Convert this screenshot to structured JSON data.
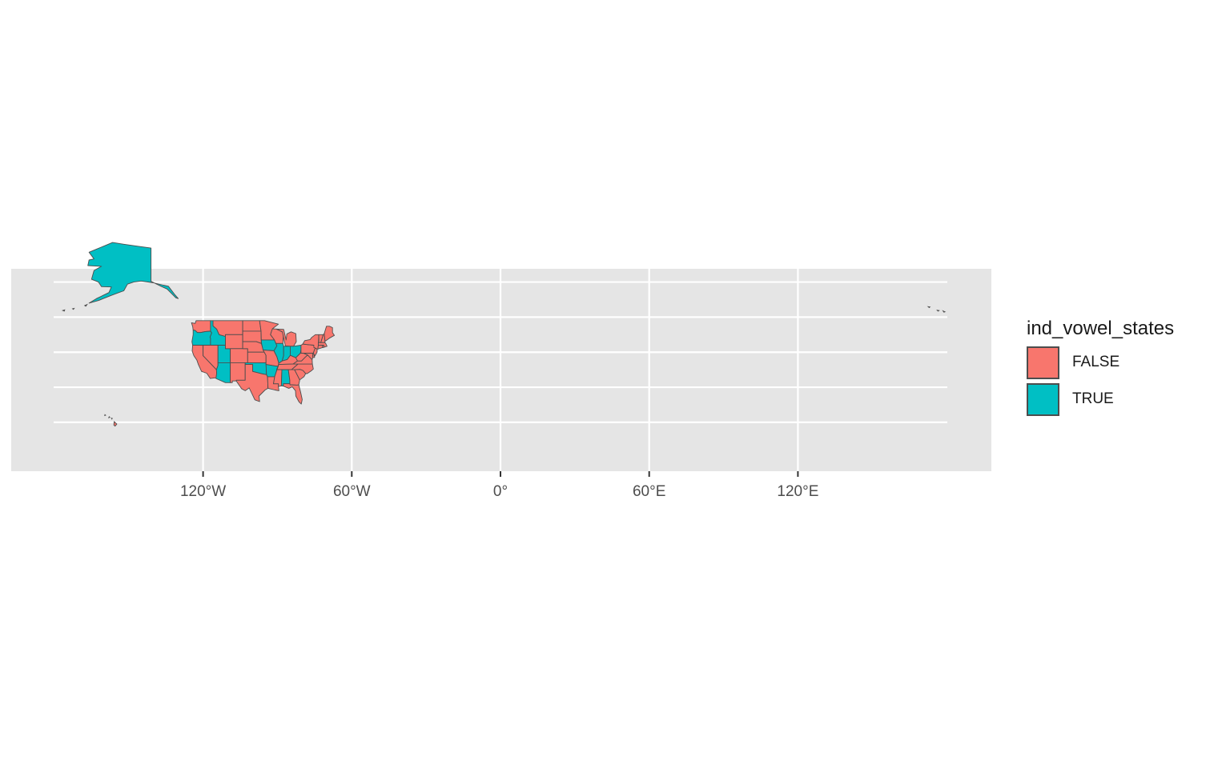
{
  "chart_data": {
    "type": "map",
    "projection": "longitude-latitude",
    "x_ticks": [
      {
        "value": -120,
        "label": "120°W"
      },
      {
        "value": -60,
        "label": "60°W"
      },
      {
        "value": 0,
        "label": "0°"
      },
      {
        "value": 60,
        "label": "60°E"
      },
      {
        "value": 120,
        "label": "120°E"
      }
    ],
    "xlim": [
      -179,
      179
    ],
    "ylim": [
      18,
      72
    ],
    "grid": true,
    "legend": {
      "title": "ind_vowel_states",
      "placement": "right",
      "entries": [
        {
          "label": "FALSE",
          "color": "#F8766D"
        },
        {
          "label": "TRUE",
          "color": "#00BFC4"
        }
      ]
    },
    "regions": [
      {
        "name": "Alaska",
        "value": "TRUE"
      },
      {
        "name": "Hawaii",
        "value": "FALSE"
      },
      {
        "name": "Washington",
        "value": "FALSE"
      },
      {
        "name": "Oregon",
        "value": "TRUE"
      },
      {
        "name": "California",
        "value": "FALSE"
      },
      {
        "name": "Idaho",
        "value": "TRUE"
      },
      {
        "name": "Nevada",
        "value": "FALSE"
      },
      {
        "name": "Utah",
        "value": "TRUE"
      },
      {
        "name": "Arizona",
        "value": "TRUE"
      },
      {
        "name": "Montana",
        "value": "FALSE"
      },
      {
        "name": "Wyoming",
        "value": "FALSE"
      },
      {
        "name": "Colorado",
        "value": "FALSE"
      },
      {
        "name": "New Mexico",
        "value": "FALSE"
      },
      {
        "name": "North Dakota",
        "value": "FALSE"
      },
      {
        "name": "South Dakota",
        "value": "FALSE"
      },
      {
        "name": "Nebraska",
        "value": "FALSE"
      },
      {
        "name": "Kansas",
        "value": "FALSE"
      },
      {
        "name": "Oklahoma",
        "value": "TRUE"
      },
      {
        "name": "Texas",
        "value": "FALSE"
      },
      {
        "name": "Minnesota",
        "value": "FALSE"
      },
      {
        "name": "Iowa",
        "value": "TRUE"
      },
      {
        "name": "Missouri",
        "value": "FALSE"
      },
      {
        "name": "Arkansas",
        "value": "TRUE"
      },
      {
        "name": "Louisiana",
        "value": "FALSE"
      },
      {
        "name": "Wisconsin",
        "value": "FALSE"
      },
      {
        "name": "Illinois",
        "value": "TRUE"
      },
      {
        "name": "Michigan",
        "value": "FALSE"
      },
      {
        "name": "Indiana",
        "value": "TRUE"
      },
      {
        "name": "Ohio",
        "value": "TRUE"
      },
      {
        "name": "Kentucky",
        "value": "FALSE"
      },
      {
        "name": "Tennessee",
        "value": "FALSE"
      },
      {
        "name": "Mississippi",
        "value": "FALSE"
      },
      {
        "name": "Alabama",
        "value": "TRUE"
      },
      {
        "name": "Georgia",
        "value": "FALSE"
      },
      {
        "name": "Florida",
        "value": "FALSE"
      },
      {
        "name": "South Carolina",
        "value": "FALSE"
      },
      {
        "name": "North Carolina",
        "value": "FALSE"
      },
      {
        "name": "Virginia",
        "value": "FALSE"
      },
      {
        "name": "West Virginia",
        "value": "FALSE"
      },
      {
        "name": "Maryland",
        "value": "FALSE"
      },
      {
        "name": "Delaware",
        "value": "FALSE"
      },
      {
        "name": "Pennsylvania",
        "value": "FALSE"
      },
      {
        "name": "New Jersey",
        "value": "FALSE"
      },
      {
        "name": "New York",
        "value": "FALSE"
      },
      {
        "name": "Connecticut",
        "value": "FALSE"
      },
      {
        "name": "Rhode Island",
        "value": "FALSE"
      },
      {
        "name": "Massachusetts",
        "value": "FALSE"
      },
      {
        "name": "Vermont",
        "value": "FALSE"
      },
      {
        "name": "New Hampshire",
        "value": "FALSE"
      },
      {
        "name": "Maine",
        "value": "FALSE"
      }
    ]
  }
}
